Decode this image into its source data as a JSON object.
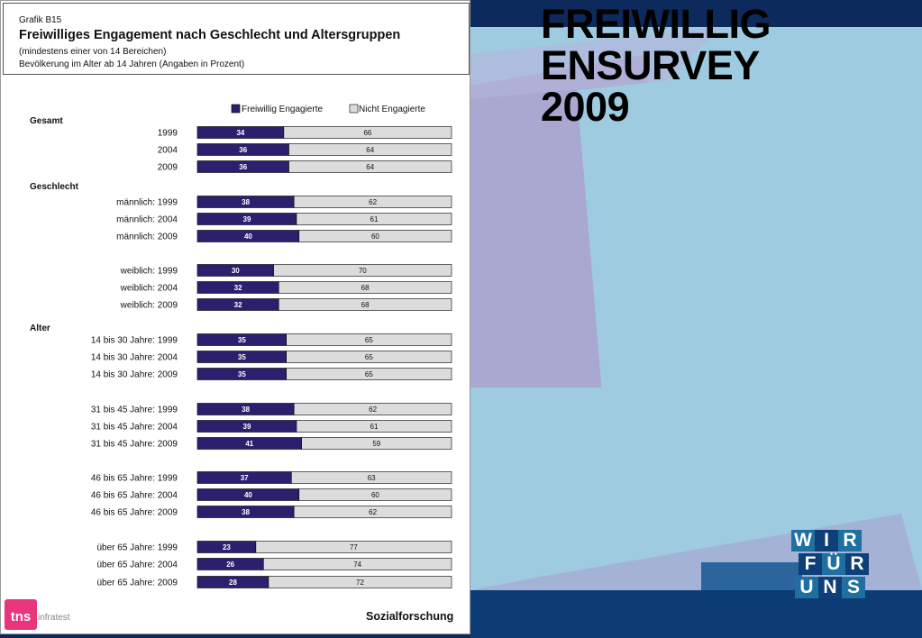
{
  "brand": {
    "title_lines": [
      "FREIWILLIG",
      "ENSURVEY",
      "2009"
    ],
    "logo_rows": [
      [
        "W",
        "I",
        "R"
      ],
      [
        "F",
        "Ü",
        "R"
      ],
      [
        "U",
        "N",
        "S"
      ]
    ],
    "colors": {
      "background_navy": "#0d2a5c",
      "light_blue": "#9fcbe0",
      "lavender": "#a9a8d0",
      "logo_tile_a": "#1f6fa0",
      "logo_tile_b": "#0d3f78"
    }
  },
  "header": {
    "code": "Grafik B15",
    "title": "Freiwilliges Engagement nach Geschlecht und Altersgruppen",
    "subtitle1": "(mindestens einer von 14 Bereichen)",
    "subtitle2": "Bevölkerung im Alter ab 14 Jahren (Angaben in Prozent)"
  },
  "footer": {
    "brand_text": "Sozialforschung",
    "tns_mark": "tns",
    "tns_suffix": "infratest"
  },
  "chart_data": {
    "type": "bar",
    "orientation": "horizontal",
    "stacked": true,
    "xlim": [
      0,
      100
    ],
    "legend_placement": "top-right",
    "colors": {
      "engaged": "#2b1f6e",
      "not_engaged": "#dcdcdc"
    },
    "series": [
      {
        "name": "Freiwillig Engagierte",
        "key": "engaged"
      },
      {
        "name": "Nicht Engagierte",
        "key": "not_engaged"
      }
    ],
    "groups": [
      {
        "label": "Gesamt",
        "rows": [
          {
            "label": "1999",
            "engaged": 34,
            "not_engaged": 66
          },
          {
            "label": "2004",
            "engaged": 36,
            "not_engaged": 64
          },
          {
            "label": "2009",
            "engaged": 36,
            "not_engaged": 64
          }
        ]
      },
      {
        "label": "Geschlecht",
        "rows": [
          {
            "label": "männlich: 1999",
            "engaged": 38,
            "not_engaged": 62
          },
          {
            "label": "männlich: 2004",
            "engaged": 39,
            "not_engaged": 61
          },
          {
            "label": "männlich: 2009",
            "engaged": 40,
            "not_engaged": 60
          },
          {
            "label": "weiblich: 1999",
            "engaged": 30,
            "not_engaged": 70
          },
          {
            "label": "weiblich: 2004",
            "engaged": 32,
            "not_engaged": 68
          },
          {
            "label": "weiblich: 2009",
            "engaged": 32,
            "not_engaged": 68
          }
        ]
      },
      {
        "label": "Alter",
        "rows": [
          {
            "label": "14 bis 30 Jahre: 1999",
            "engaged": 35,
            "not_engaged": 65
          },
          {
            "label": "14 bis 30 Jahre: 2004",
            "engaged": 35,
            "not_engaged": 65
          },
          {
            "label": "14 bis 30 Jahre: 2009",
            "engaged": 35,
            "not_engaged": 65
          },
          {
            "label": "31 bis 45 Jahre: 1999",
            "engaged": 38,
            "not_engaged": 62
          },
          {
            "label": "31 bis 45 Jahre: 2004",
            "engaged": 39,
            "not_engaged": 61
          },
          {
            "label": "31 bis 45 Jahre: 2009",
            "engaged": 41,
            "not_engaged": 59
          },
          {
            "label": "46 bis 65 Jahre: 1999",
            "engaged": 37,
            "not_engaged": 63
          },
          {
            "label": "46 bis 65 Jahre: 2004",
            "engaged": 40,
            "not_engaged": 60
          },
          {
            "label": "46 bis 65 Jahre: 2009",
            "engaged": 38,
            "not_engaged": 62
          },
          {
            "label": "über 65 Jahre: 1999",
            "engaged": 23,
            "not_engaged": 77
          },
          {
            "label": "über 65 Jahre: 2004",
            "engaged": 26,
            "not_engaged": 74
          },
          {
            "label": "über 65 Jahre: 2009",
            "engaged": 28,
            "not_engaged": 72
          }
        ]
      }
    ]
  }
}
